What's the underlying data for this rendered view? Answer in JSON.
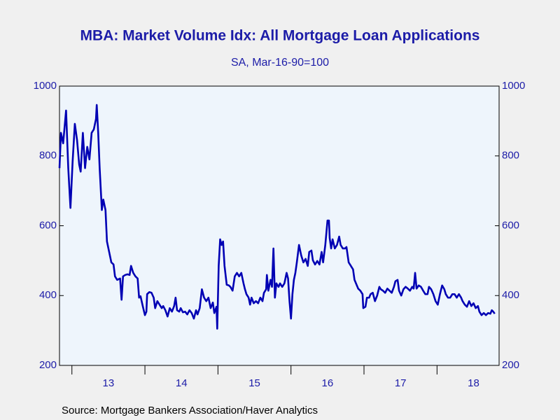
{
  "chart_data": {
    "type": "line",
    "title": "MBA: Market Volume Idx: All Mortgage Loan Applications",
    "subtitle": "SA, Mar-16-90=100",
    "source": "Source:  Mortgage Bankers Association/Haver Analytics",
    "color": "#0000b4",
    "xlim": [
      2012.83,
      2018.85
    ],
    "xticks": [
      {
        "value": 2013.5,
        "label": "13"
      },
      {
        "value": 2014.5,
        "label": "14"
      },
      {
        "value": 2015.5,
        "label": "15"
      },
      {
        "value": 2016.5,
        "label": "16"
      },
      {
        "value": 2017.5,
        "label": "17"
      },
      {
        "value": 2018.5,
        "label": "18"
      }
    ],
    "year_boundaries": [
      2013,
      2014,
      2015,
      2016,
      2017,
      2018
    ],
    "ylim": [
      200,
      1000
    ],
    "yticks": [
      200,
      400,
      600,
      800,
      1000
    ],
    "y2lim": [
      200,
      1000
    ],
    "y2ticks": [
      200,
      400,
      600,
      800,
      1000
    ],
    "x": [
      2012.83,
      2012.85,
      2012.88,
      2012.92,
      2012.95,
      2012.98,
      2013.01,
      2013.04,
      2013.07,
      2013.1,
      2013.12,
      2013.15,
      2013.18,
      2013.21,
      2013.24,
      2013.27,
      2013.3,
      2013.33,
      2013.34,
      2013.36,
      2013.38,
      2013.41,
      2013.43,
      2013.46,
      2013.48,
      2013.51,
      2013.54,
      2013.57,
      2013.59,
      2013.62,
      2013.66,
      2013.68,
      2013.7,
      2013.73,
      2013.76,
      2013.79,
      2013.81,
      2013.84,
      2013.87,
      2013.9,
      2013.92,
      2013.94,
      2013.97,
      2014.0,
      2014.02,
      2014.03,
      2014.06,
      2014.09,
      2014.12,
      2014.14,
      2014.17,
      2014.2,
      2014.23,
      2014.25,
      2014.28,
      2014.31,
      2014.34,
      2014.37,
      2014.4,
      2014.42,
      2014.44,
      2014.47,
      2014.49,
      2014.52,
      2014.55,
      2014.58,
      2014.61,
      2014.64,
      2014.67,
      2014.7,
      2014.72,
      2014.75,
      2014.78,
      2014.81,
      2014.84,
      2014.87,
      2014.9,
      2014.93,
      2014.95,
      2014.98,
      2014.99,
      2015.01,
      2015.03,
      2015.05,
      2015.07,
      2015.09,
      2015.12,
      2015.15,
      2015.17,
      2015.2,
      2015.23,
      2015.26,
      2015.29,
      2015.32,
      2015.35,
      2015.37,
      2015.39,
      2015.42,
      2015.44,
      2015.46,
      2015.49,
      2015.52,
      2015.55,
      2015.58,
      2015.61,
      2015.63,
      2015.66,
      2015.67,
      2015.69,
      2015.72,
      2015.74,
      2015.76,
      2015.78,
      2015.8,
      2015.83,
      2015.85,
      2015.88,
      2015.91,
      2015.94,
      2015.96,
      2015.98,
      2016.0,
      2016.02,
      2016.04,
      2016.06,
      2016.08,
      2016.11,
      2016.14,
      2016.17,
      2016.2,
      2016.23,
      2016.25,
      2016.28,
      2016.3,
      2016.33,
      2016.36,
      2016.39,
      2016.42,
      2016.44,
      2016.47,
      2016.5,
      2016.52,
      2016.53,
      2016.55,
      2016.57,
      2016.6,
      2016.63,
      2016.66,
      2016.68,
      2016.71,
      2016.74,
      2016.76,
      2016.79,
      2016.82,
      2016.85,
      2016.87,
      2016.89,
      2016.92,
      2016.95,
      2016.98,
      2016.99,
      2017.02,
      2017.04,
      2017.07,
      2017.09,
      2017.12,
      2017.15,
      2017.18,
      2017.21,
      2017.23,
      2017.26,
      2017.29,
      2017.32,
      2017.35,
      2017.38,
      2017.41,
      2017.43,
      2017.46,
      2017.48,
      2017.51,
      2017.54,
      2017.57,
      2017.6,
      2017.63,
      2017.66,
      2017.68,
      2017.7,
      2017.72,
      2017.75,
      2017.78,
      2017.81,
      2017.84,
      2017.87,
      2017.89,
      2017.92,
      2017.95,
      2017.98,
      2018.01,
      2018.04,
      2018.07,
      2018.1,
      2018.12,
      2018.15,
      2018.18,
      2018.21,
      2018.24,
      2018.27,
      2018.3,
      2018.33,
      2018.35,
      2018.38,
      2018.41,
      2018.44,
      2018.47,
      2018.5,
      2018.53,
      2018.56,
      2018.58,
      2018.61,
      2018.64,
      2018.67,
      2018.7,
      2018.73,
      2018.75,
      2018.77,
      2018.79
    ],
    "values": [
      765,
      866,
      836,
      930,
      765,
      651,
      785,
      892,
      846,
      775,
      755,
      866,
      765,
      826,
      790,
      866,
      876,
      906,
      946,
      866,
      765,
      645,
      675,
      645,
      555,
      525,
      495,
      489,
      455,
      445,
      449,
      388,
      455,
      459,
      461,
      459,
      485,
      465,
      455,
      449,
      394,
      398,
      370,
      344,
      354,
      404,
      410,
      408,
      394,
      364,
      384,
      374,
      364,
      370,
      358,
      340,
      364,
      354,
      370,
      394,
      358,
      354,
      364,
      352,
      354,
      346,
      358,
      350,
      334,
      358,
      346,
      364,
      418,
      394,
      384,
      394,
      364,
      380,
      350,
      368,
      305,
      485,
      561,
      545,
      555,
      485,
      431,
      429,
      425,
      414,
      455,
      465,
      455,
      465,
      435,
      418,
      404,
      394,
      374,
      394,
      378,
      384,
      378,
      394,
      384,
      408,
      418,
      459,
      414,
      445,
      425,
      535,
      394,
      435,
      425,
      435,
      425,
      435,
      465,
      449,
      384,
      334,
      404,
      445,
      465,
      495,
      545,
      515,
      495,
      505,
      485,
      525,
      529,
      501,
      489,
      499,
      489,
      525,
      495,
      545,
      615,
      615,
      565,
      535,
      561,
      535,
      545,
      569,
      545,
      535,
      535,
      539,
      495,
      485,
      475,
      445,
      435,
      420,
      414,
      404,
      364,
      368,
      394,
      394,
      404,
      408,
      384,
      400,
      425,
      418,
      414,
      408,
      420,
      414,
      408,
      425,
      441,
      445,
      414,
      400,
      418,
      425,
      420,
      414,
      425,
      420,
      465,
      420,
      429,
      425,
      414,
      404,
      404,
      425,
      418,
      404,
      384,
      374,
      404,
      429,
      418,
      404,
      394,
      394,
      404,
      404,
      394,
      404,
      394,
      384,
      374,
      368,
      384,
      370,
      378,
      364,
      370,
      354,
      344,
      350,
      344,
      350,
      348,
      358,
      354,
      348
    ]
  }
}
